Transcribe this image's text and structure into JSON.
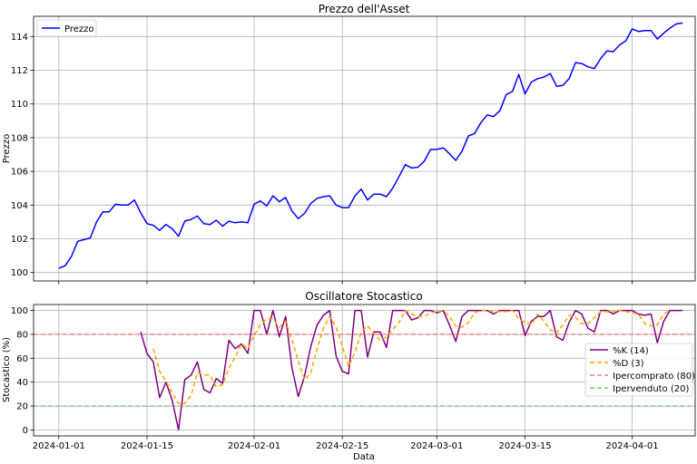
{
  "chart_data": [
    {
      "type": "line",
      "title": "Prezzo dell'Asset",
      "xlabel": "",
      "ylabel": "Prezzo",
      "xlim": [
        "2023-12-28",
        "2024-04-11"
      ],
      "ylim": [
        99.5,
        115.2
      ],
      "yticks": [
        100,
        102,
        104,
        106,
        108,
        110,
        112,
        114
      ],
      "grid": true,
      "legend_position": "upper left",
      "series": [
        {
          "name": "Prezzo",
          "color": "#0000ff",
          "x_start": "2024-01-01",
          "x_step_days": 1,
          "values": [
            100.25,
            100.4,
            100.95,
            101.85,
            101.95,
            102.05,
            103.0,
            103.6,
            103.6,
            104.05,
            104.0,
            104.0,
            104.3,
            103.55,
            102.9,
            102.8,
            102.5,
            102.85,
            102.6,
            102.15,
            103.05,
            103.15,
            103.35,
            102.9,
            102.85,
            103.1,
            102.75,
            103.05,
            102.95,
            103.0,
            102.95,
            104.05,
            104.25,
            103.95,
            104.55,
            104.2,
            104.45,
            103.65,
            103.2,
            103.5,
            104.1,
            104.4,
            104.5,
            104.55,
            104.0,
            103.85,
            103.85,
            104.55,
            104.95,
            104.3,
            104.65,
            104.65,
            104.5,
            105.0,
            105.7,
            106.4,
            106.2,
            106.25,
            106.6,
            107.3,
            107.3,
            107.4,
            107.05,
            106.65,
            107.2,
            108.1,
            108.25,
            108.9,
            109.35,
            109.25,
            109.6,
            110.55,
            110.75,
            111.75,
            110.6,
            111.3,
            111.5,
            111.6,
            111.8,
            111.05,
            111.1,
            111.5,
            112.45,
            112.4,
            112.2,
            112.1,
            112.7,
            113.15,
            113.1,
            113.5,
            113.75,
            114.45,
            114.3,
            114.35,
            114.35,
            113.85,
            114.2,
            114.5,
            114.75,
            114.8
          ]
        }
      ]
    },
    {
      "type": "line",
      "title": "Oscillatore Stocastico",
      "xlabel": "Data",
      "ylabel": "Stocastico (%)",
      "xlim": [
        "2023-12-28",
        "2024-04-11"
      ],
      "ylim": [
        -5,
        105
      ],
      "yticks": [
        0,
        20,
        40,
        60,
        80,
        100
      ],
      "xticks": [
        "2024-01-01",
        "2024-01-15",
        "2024-02-01",
        "2024-02-15",
        "2024-03-01",
        "2024-03-15",
        "2024-04-01"
      ],
      "grid": true,
      "legend_position": "center right",
      "series": [
        {
          "name": "%K (14)",
          "color": "#800080",
          "x_start": "2024-01-14",
          "x_step_days": 1,
          "values": [
            82,
            64,
            57,
            27,
            40,
            25,
            0,
            42,
            46,
            57,
            34,
            31,
            43,
            39,
            75,
            68,
            72,
            64,
            100,
            100,
            80,
            100,
            78,
            95,
            52,
            28,
            45,
            70,
            88,
            96,
            100,
            62,
            49,
            47,
            100,
            100,
            61,
            82,
            82,
            69,
            100,
            100,
            100,
            92,
            94,
            100,
            100,
            98,
            100,
            88,
            74,
            95,
            100,
            100,
            100,
            100,
            97,
            100,
            100,
            100,
            100,
            79,
            91,
            95,
            95,
            100,
            78,
            75,
            90,
            100,
            97,
            85,
            82,
            100,
            100,
            97,
            100,
            100,
            100,
            97,
            96,
            97,
            73,
            91,
            100,
            100,
            100
          ]
        },
        {
          "name": "%D (3)",
          "color": "#ffa500",
          "dashed": true,
          "x_start": "2024-01-16",
          "x_step_days": 1,
          "values": [
            68,
            49,
            41,
            31,
            22,
            22,
            29,
            48,
            46,
            46,
            36,
            38,
            52,
            61,
            72,
            68,
            79,
            88,
            93,
            93,
            86,
            91,
            75,
            58,
            42,
            48,
            68,
            85,
            95,
            86,
            70,
            53,
            65,
            82,
            87,
            81,
            75,
            78,
            84,
            90,
            100,
            97,
            95,
            95,
            98,
            99,
            100,
            95,
            87,
            86,
            90,
            98,
            100,
            100,
            99,
            99,
            99,
            100,
            93,
            90,
            88,
            97,
            91,
            84,
            81,
            88,
            96,
            94,
            89,
            89,
            94,
            99,
            99,
            99,
            100,
            99,
            98,
            97,
            89,
            87,
            88,
            97,
            100
          ]
        },
        {
          "name": "Ipercomprato (80)",
          "color": "#e06666",
          "dashed": true,
          "constant": 80
        },
        {
          "name": "Ipervenduto (20)",
          "color": "#5cb85c",
          "dashed": true,
          "constant": 20
        }
      ]
    }
  ]
}
